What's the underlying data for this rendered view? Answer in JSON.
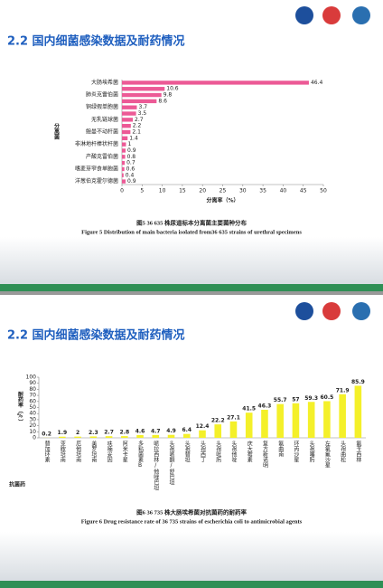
{
  "slide_titles": [
    "2.2 国内细菌感染数据及耐药情况",
    "2.2 国内细菌感染数据及耐药情况"
  ],
  "chart_data": [
    {
      "type": "hbar",
      "categories": [
        "大肠埃希菌",
        null,
        "肺炎克雷伯菌",
        null,
        "铜绿假单胞菌",
        null,
        "无乳链球菌",
        null,
        "鲍曼不动杆菌",
        null,
        "非淋地杆棒状杆菌",
        null,
        "产酸克雷伯菌",
        null,
        "嗜麦芽窄食单胞菌",
        null,
        "洋葱伯克霍尔德菌"
      ],
      "values": [
        46.4,
        10.6,
        9.8,
        8.6,
        3.7,
        3.5,
        2.7,
        2.2,
        2.1,
        1.4,
        1,
        0.9,
        0.8,
        0.7,
        0.6,
        0.4,
        0.9
      ],
      "color": "#ec5a96",
      "xlim": [
        0,
        50
      ],
      "xticks": [
        0,
        5,
        10,
        15,
        20,
        25,
        30,
        35,
        40,
        45,
        50
      ],
      "x_label": "分离率（%）",
      "y_label": "分离菌",
      "caption_cn": "图5 36 635 株尿道标本分离菌主要菌种分布",
      "caption_en": "Figure 5 Distribution of main bacteria isolated from36 635 strains of urethral specimens"
    },
    {
      "type": "bar",
      "categories": [
        "替加环素",
        "亚胺培南",
        "厄他培南",
        "美罗培南",
        "呋喃妥因",
        "阿米卡星",
        "多粘菌素B",
        "哌拉西林/他唑巴坦",
        "头孢哌酮/舒巴坦",
        "头孢替坦",
        "头孢西丁",
        "头孢吡肟",
        "头孢他啶",
        "庆大霉素",
        "复方新诺明",
        "氨曲南",
        "环丙沙星",
        "头孢噻肟",
        "左氧氟沙星",
        "头孢曲松",
        "氨苄西林"
      ],
      "values": [
        0.2,
        1.9,
        2,
        2.3,
        2.7,
        2.8,
        4.6,
        4.7,
        4.9,
        6.4,
        12.4,
        22.2,
        27.1,
        41.5,
        46.3,
        55.7,
        57,
        59.3,
        60.5,
        71.9,
        85.9
      ],
      "color": "#f4f02a",
      "ylim": [
        0,
        100
      ],
      "yticks": [
        0,
        10,
        20,
        30,
        40,
        50,
        60,
        70,
        80,
        90,
        100
      ],
      "x_label": "抗菌药",
      "y_label": "耐药率（%）",
      "caption_cn": "图6 36 735 株大肠埃希菌对抗菌药的耐药率",
      "caption_en": "Figure 6 Drug resistance rate of 36 735 strains of escherichia coli to antimicrobial agents"
    }
  ]
}
